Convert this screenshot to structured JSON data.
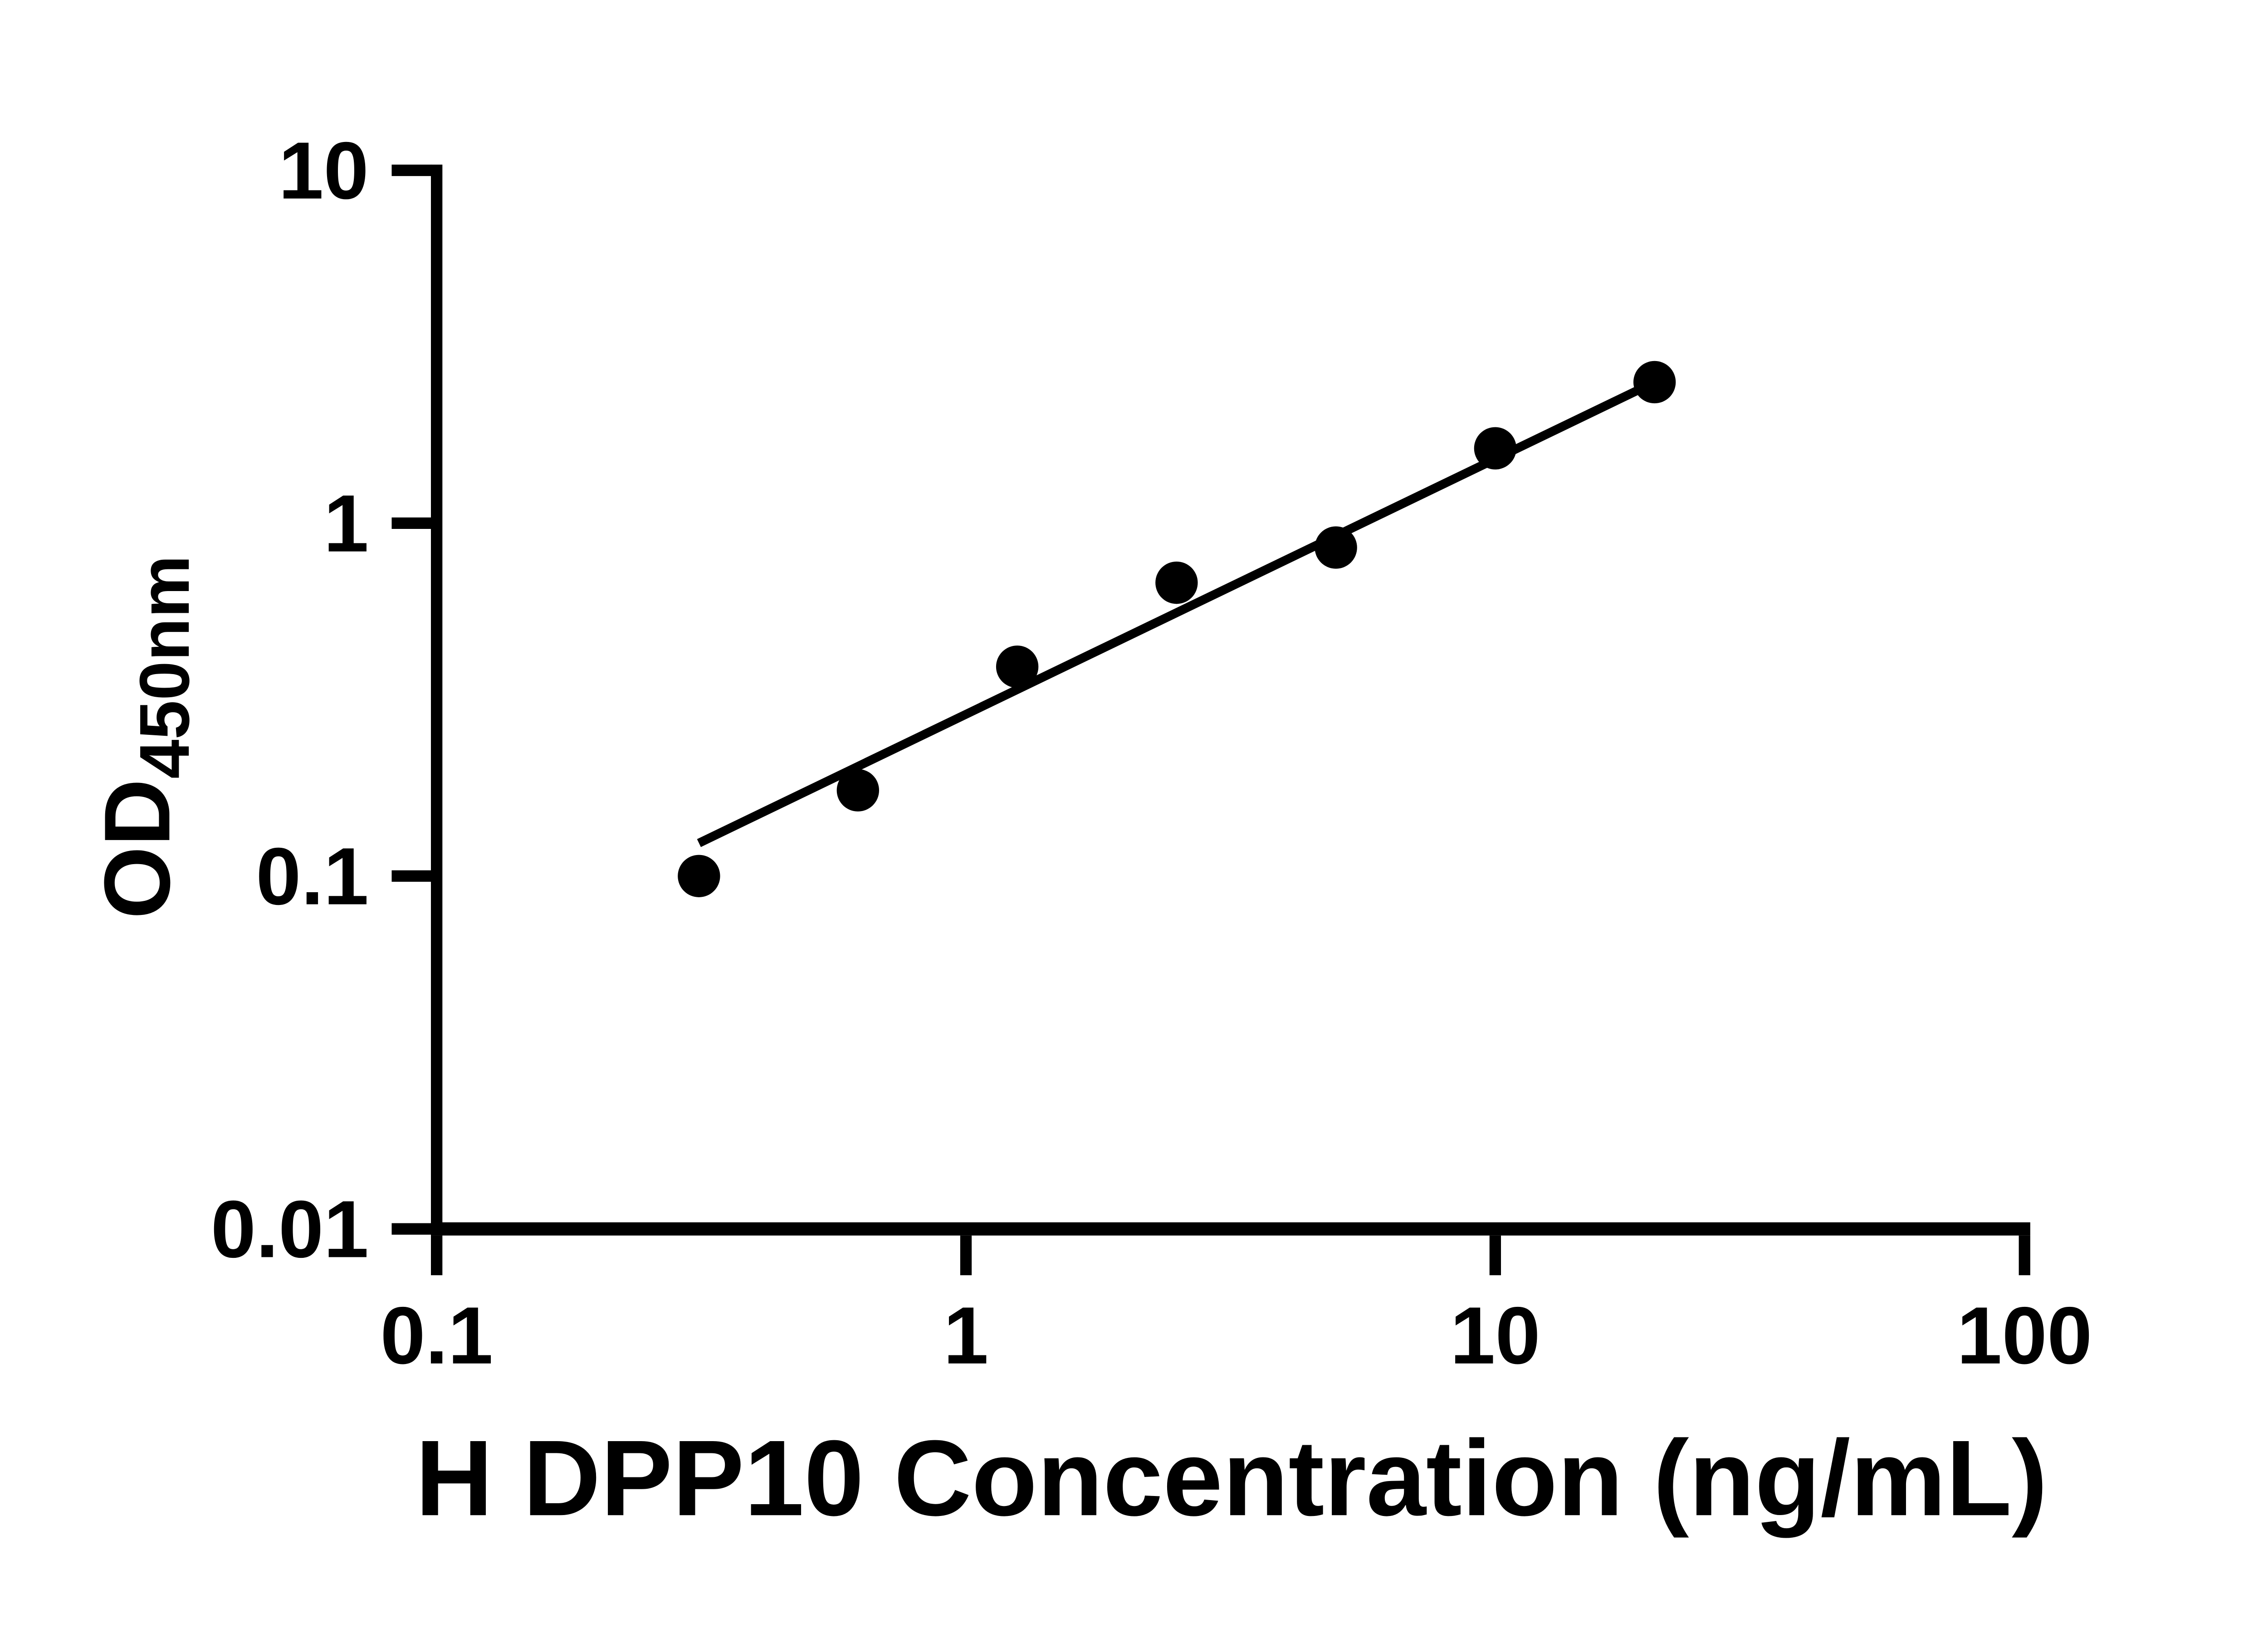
{
  "chart_data": {
    "type": "scatter",
    "title": "",
    "xlabel": "H DPP10 Concentration (ng/mL)",
    "ylabel_main": "OD",
    "ylabel_sub": "450nm",
    "x_scale": "log10",
    "y_scale": "log10",
    "xlim": [
      0.1,
      100
    ],
    "ylim": [
      0.01,
      10
    ],
    "grid": false,
    "legend": null,
    "marker_color": "#000000",
    "line_color": "#000000",
    "axis_color": "#000000",
    "background_color": "#ffffff",
    "x_ticks": [
      {
        "value": 0.1,
        "label": "0.1"
      },
      {
        "value": 1,
        "label": "1"
      },
      {
        "value": 10,
        "label": "10"
      },
      {
        "value": 100,
        "label": "100"
      }
    ],
    "y_ticks": [
      {
        "value": 10,
        "label": "10"
      },
      {
        "value": 1,
        "label": "1"
      },
      {
        "value": 0.1,
        "label": "0.1"
      },
      {
        "value": 0.01,
        "label": "0.01"
      }
    ],
    "points": [
      {
        "x": 0.313,
        "y": 0.1
      },
      {
        "x": 0.625,
        "y": 0.175
      },
      {
        "x": 1.25,
        "y": 0.392
      },
      {
        "x": 2.5,
        "y": 0.678
      },
      {
        "x": 5,
        "y": 0.853
      },
      {
        "x": 10,
        "y": 1.63
      },
      {
        "x": 20,
        "y": 2.51
      }
    ],
    "trend_line": {
      "x1": 0.313,
      "y1": 0.124,
      "x2": 20,
      "y2": 2.51
    }
  }
}
